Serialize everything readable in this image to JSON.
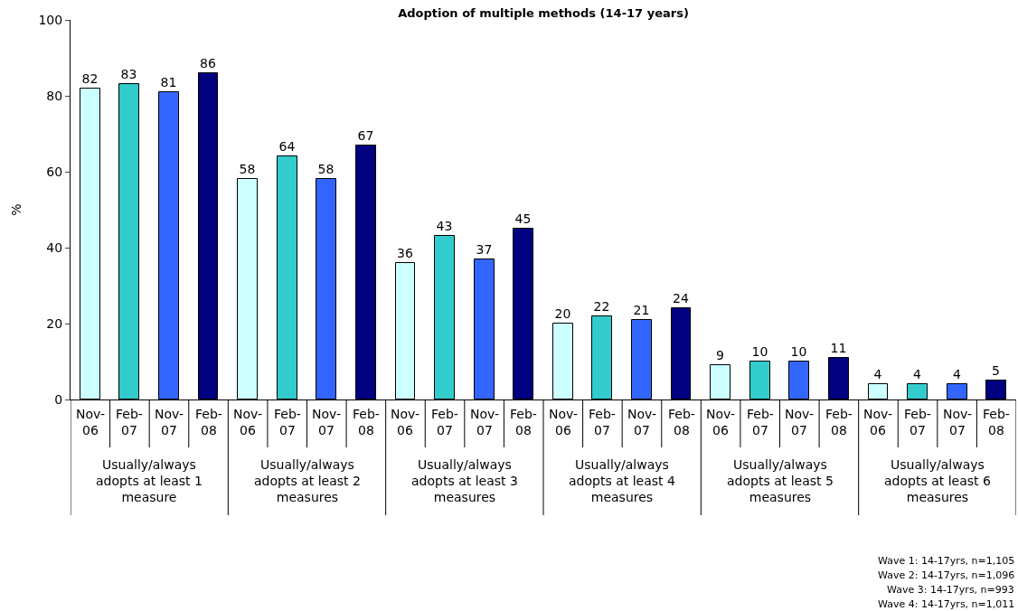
{
  "chart_data": {
    "type": "bar",
    "title": "Adoption of multiple methods (14-17 years)",
    "ylabel": "%",
    "categories": [
      "Nov-06",
      "Feb-07",
      "Nov-07",
      "Feb-08",
      "Nov-06",
      "Feb-07",
      "Nov-07",
      "Feb-08",
      "Nov-06",
      "Feb-07",
      "Nov-07",
      "Feb-08",
      "Nov-06",
      "Feb-07",
      "Nov-07",
      "Feb-08",
      "Nov-06",
      "Feb-07",
      "Nov-07",
      "Feb-08",
      "Nov-06",
      "Feb-07",
      "Nov-07",
      "Feb-08"
    ],
    "values": [
      82,
      83,
      81,
      86,
      58,
      64,
      58,
      67,
      36,
      43,
      37,
      45,
      20,
      22,
      21,
      24,
      9,
      10,
      10,
      11,
      4,
      4,
      4,
      5
    ],
    "colors": [
      "#ccffff",
      "#33cccc",
      "#3366ff",
      "#000080",
      "#ccffff",
      "#33cccc",
      "#3366ff",
      "#000080",
      "#ccffff",
      "#33cccc",
      "#3366ff",
      "#000080",
      "#ccffff",
      "#33cccc",
      "#3366ff",
      "#000080",
      "#ccffff",
      "#33cccc",
      "#3366ff",
      "#000080",
      "#ccffff",
      "#33cccc",
      "#3366ff",
      "#000080"
    ],
    "ylim": [
      0,
      100
    ],
    "yticks": [
      0,
      20,
      40,
      60,
      80,
      100
    ],
    "data_labels": true,
    "annotations": [
      "Usually/always adopts at least 1 measure",
      "Usually/always adopts at least 2 measures",
      "Usually/always adopts at least 3 measures",
      "Usually/always adopts at least 4 measures",
      "Usually/always adopts at least 5 measures",
      "Usually/always adopts at least 6 measures",
      "Wave 1: 14-17yrs, n=1,105",
      "Wave 2: 14-17yrs, n=1,096",
      "Wave 3: 14-17yrs, n=993",
      "Wave 4: 14-17yrs, n=1,011"
    ]
  }
}
